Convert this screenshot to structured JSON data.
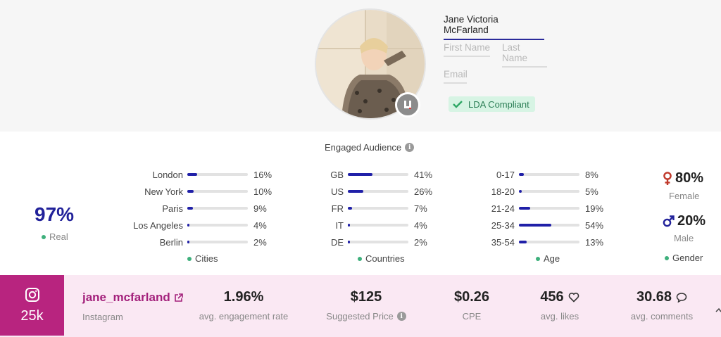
{
  "profile": {
    "full_name": "Jane Victoria McFarland",
    "first_name_placeholder": "First Name",
    "last_name_placeholder": "Last Name",
    "email_placeholder": "Email",
    "compliance_badge": "LDA Compliant",
    "avatar_badge_icon": "brand-logo-icon"
  },
  "audience": {
    "title": "Engaged Audience",
    "real": {
      "value": "97%",
      "label": "Real"
    },
    "cities": {
      "label": "Cities",
      "items": [
        {
          "name": "London",
          "pct": "16%",
          "fraction": 0.16
        },
        {
          "name": "New York",
          "pct": "10%",
          "fraction": 0.1
        },
        {
          "name": "Paris",
          "pct": "9%",
          "fraction": 0.09
        },
        {
          "name": "Los Angeles",
          "pct": "4%",
          "fraction": 0.04
        },
        {
          "name": "Berlin",
          "pct": "2%",
          "fraction": 0.02
        }
      ]
    },
    "countries": {
      "label": "Countries",
      "items": [
        {
          "name": "GB",
          "pct": "41%",
          "fraction": 0.41
        },
        {
          "name": "US",
          "pct": "26%",
          "fraction": 0.26
        },
        {
          "name": "FR",
          "pct": "7%",
          "fraction": 0.07
        },
        {
          "name": "IT",
          "pct": "4%",
          "fraction": 0.04
        },
        {
          "name": "DE",
          "pct": "2%",
          "fraction": 0.02
        }
      ]
    },
    "age": {
      "label": "Age",
      "items": [
        {
          "name": "0-17",
          "pct": "8%",
          "fraction": 0.08
        },
        {
          "name": "18-20",
          "pct": "5%",
          "fraction": 0.05
        },
        {
          "name": "21-24",
          "pct": "19%",
          "fraction": 0.19
        },
        {
          "name": "25-34",
          "pct": "54%",
          "fraction": 0.54
        },
        {
          "name": "35-54",
          "pct": "13%",
          "fraction": 0.13
        }
      ]
    },
    "gender": {
      "label": "Gender",
      "female": {
        "value": "80%",
        "label": "Female"
      },
      "male": {
        "value": "20%",
        "label": "Male"
      }
    }
  },
  "account": {
    "followers": "25k",
    "handle": "jane_mcfarland",
    "platform": "Instagram",
    "stats": {
      "engagement": {
        "value": "1.96%",
        "label": "avg. engagement rate"
      },
      "price": {
        "value": "$125",
        "label": "Suggested Price"
      },
      "cpe": {
        "value": "$0.26",
        "label": "CPE"
      },
      "likes": {
        "value": "456",
        "label": "avg. likes"
      },
      "comments": {
        "value": "30.68",
        "label": "avg. comments"
      }
    }
  },
  "colors": {
    "accent": "#22229a",
    "instagram": "#b8247f",
    "female": "#c0392b",
    "male": "#22229a",
    "status_green": "#3eb07c"
  }
}
